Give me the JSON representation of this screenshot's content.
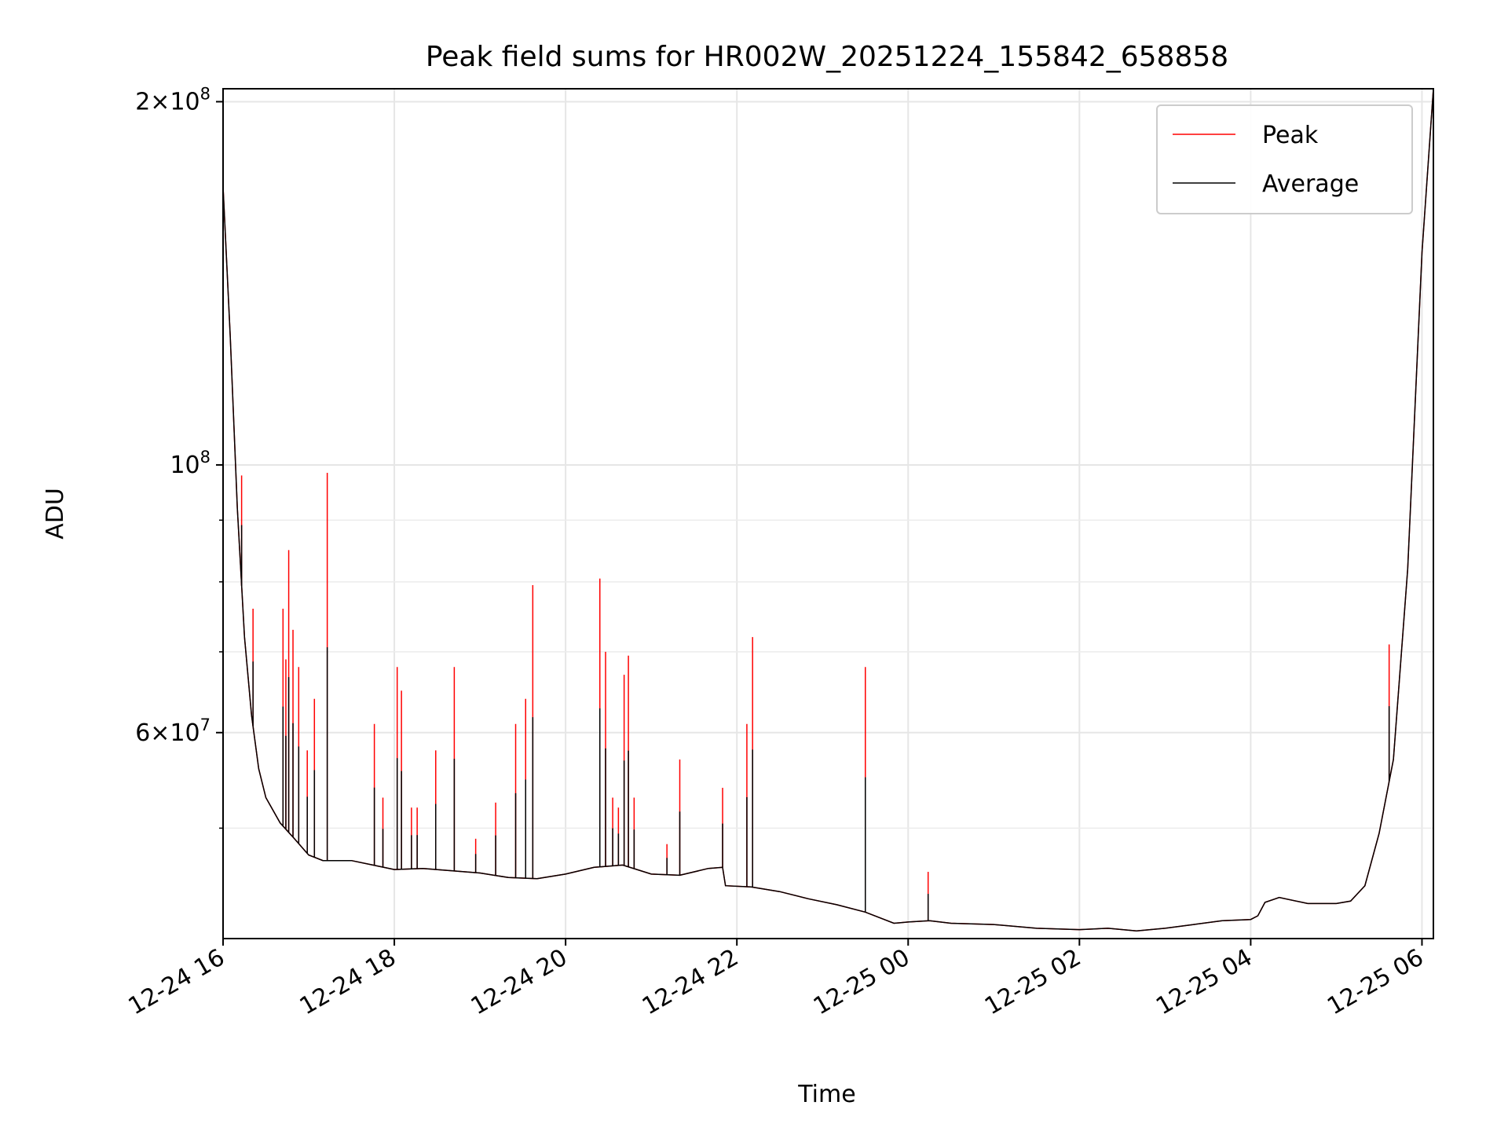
{
  "chart_data": {
    "type": "line",
    "title": "Peak field sums for HR002W_20251224_155842_658858",
    "xlabel": "Time",
    "ylabel": "ADU",
    "y_scale": "log",
    "xlim": [
      "2025-12-24T16:00",
      "2025-12-25T06:08"
    ],
    "ylim": [
      40500000,
      205000000
    ],
    "x_ticks": [
      {
        "t": "2025-12-24T16:00",
        "label": "12-24 16"
      },
      {
        "t": "2025-12-24T18:00",
        "label": "12-24 18"
      },
      {
        "t": "2025-12-24T20:00",
        "label": "12-24 20"
      },
      {
        "t": "2025-12-24T22:00",
        "label": "12-24 22"
      },
      {
        "t": "2025-12-25T00:00",
        "label": "12-25 00"
      },
      {
        "t": "2025-12-25T02:00",
        "label": "12-25 02"
      },
      {
        "t": "2025-12-25T04:00",
        "label": "12-25 04"
      },
      {
        "t": "2025-12-25T06:00",
        "label": "12-25 06"
      }
    ],
    "y_major_ticks": [
      {
        "value": 100000000,
        "base": "10",
        "exp": "8"
      },
      {
        "value": 200000000,
        "mant": "2",
        "base": "10",
        "exp": "8"
      },
      {
        "value": 60000000,
        "mant": "6",
        "base": "10",
        "exp": "7"
      }
    ],
    "y_minor_ticks": [
      50000000,
      70000000,
      80000000,
      90000000
    ],
    "grid": true,
    "legend": {
      "position": "top-right",
      "entries": [
        "Peak",
        "Average"
      ]
    },
    "series": [
      {
        "name": "Average",
        "color": "#000000",
        "points": [
          [
            "2025-12-24T16:00",
            170000000
          ],
          [
            "2025-12-24T16:05",
            128000000
          ],
          [
            "2025-12-24T16:10",
            92000000
          ],
          [
            "2025-12-24T16:15",
            72000000
          ],
          [
            "2025-12-24T16:20",
            62000000
          ],
          [
            "2025-12-24T16:25",
            56000000
          ],
          [
            "2025-12-24T16:30",
            53000000
          ],
          [
            "2025-12-24T16:40",
            50500000
          ],
          [
            "2025-12-24T16:50",
            49000000
          ],
          [
            "2025-12-24T17:00",
            47500000
          ],
          [
            "2025-12-24T17:10",
            47000000
          ],
          [
            "2025-12-24T17:30",
            47000000
          ],
          [
            "2025-12-24T17:45",
            46600000
          ],
          [
            "2025-12-24T18:00",
            46200000
          ],
          [
            "2025-12-24T18:20",
            46300000
          ],
          [
            "2025-12-24T18:40",
            46100000
          ],
          [
            "2025-12-24T19:00",
            45900000
          ],
          [
            "2025-12-24T19:20",
            45500000
          ],
          [
            "2025-12-24T19:40",
            45400000
          ],
          [
            "2025-12-24T20:00",
            45800000
          ],
          [
            "2025-12-24T20:20",
            46400000
          ],
          [
            "2025-12-24T20:40",
            46600000
          ],
          [
            "2025-12-24T21:00",
            45800000
          ],
          [
            "2025-12-24T21:20",
            45700000
          ],
          [
            "2025-12-24T21:40",
            46300000
          ],
          [
            "2025-12-24T21:50",
            46400000
          ],
          [
            "2025-12-24T21:52",
            44800000
          ],
          [
            "2025-12-24T22:10",
            44700000
          ],
          [
            "2025-12-24T22:30",
            44300000
          ],
          [
            "2025-12-24T22:50",
            43700000
          ],
          [
            "2025-12-24T23:10",
            43200000
          ],
          [
            "2025-12-24T23:30",
            42600000
          ],
          [
            "2025-12-24T23:50",
            41700000
          ],
          [
            "2025-12-25T00:00",
            41800000
          ],
          [
            "2025-12-25T00:15",
            41900000
          ],
          [
            "2025-12-25T00:30",
            41700000
          ],
          [
            "2025-12-25T01:00",
            41600000
          ],
          [
            "2025-12-25T01:30",
            41300000
          ],
          [
            "2025-12-25T02:00",
            41200000
          ],
          [
            "2025-12-25T02:20",
            41300000
          ],
          [
            "2025-12-25T02:40",
            41100000
          ],
          [
            "2025-12-25T03:00",
            41300000
          ],
          [
            "2025-12-25T03:20",
            41600000
          ],
          [
            "2025-12-25T03:40",
            41900000
          ],
          [
            "2025-12-25T04:00",
            42000000
          ],
          [
            "2025-12-25T04:05",
            42300000
          ],
          [
            "2025-12-25T04:10",
            43400000
          ],
          [
            "2025-12-25T04:20",
            43800000
          ],
          [
            "2025-12-25T04:40",
            43300000
          ],
          [
            "2025-12-25T05:00",
            43300000
          ],
          [
            "2025-12-25T05:10",
            43500000
          ],
          [
            "2025-12-25T05:20",
            44800000
          ],
          [
            "2025-12-25T05:30",
            49500000
          ],
          [
            "2025-12-25T05:40",
            57000000
          ],
          [
            "2025-12-25T05:50",
            82000000
          ],
          [
            "2025-12-25T06:00",
            150000000
          ],
          [
            "2025-12-25T06:08",
            205000000
          ]
        ]
      },
      {
        "name": "Peak",
        "color": "#ff0000",
        "baseline": "Average",
        "spikes": [
          [
            "2025-12-24T16:13",
            98000000
          ],
          [
            "2025-12-24T16:21",
            76000000
          ],
          [
            "2025-12-24T16:42",
            76000000
          ],
          [
            "2025-12-24T16:44",
            69000000
          ],
          [
            "2025-12-24T16:46",
            85000000
          ],
          [
            "2025-12-24T16:49",
            73000000
          ],
          [
            "2025-12-24T16:53",
            68000000
          ],
          [
            "2025-12-24T16:59",
            58000000
          ],
          [
            "2025-12-24T17:04",
            64000000
          ],
          [
            "2025-12-24T17:13",
            98500000
          ],
          [
            "2025-12-24T17:46",
            61000000
          ],
          [
            "2025-12-24T17:52",
            53000000
          ],
          [
            "2025-12-24T18:02",
            68000000
          ],
          [
            "2025-12-24T18:05",
            65000000
          ],
          [
            "2025-12-24T18:12",
            52000000
          ],
          [
            "2025-12-24T18:16",
            52000000
          ],
          [
            "2025-12-24T18:29",
            58000000
          ],
          [
            "2025-12-24T18:42",
            68000000
          ],
          [
            "2025-12-24T18:57",
            49000000
          ],
          [
            "2025-12-24T19:11",
            52500000
          ],
          [
            "2025-12-24T19:25",
            61000000
          ],
          [
            "2025-12-24T19:32",
            64000000
          ],
          [
            "2025-12-24T19:37",
            79500000
          ],
          [
            "2025-12-24T20:24",
            80500000
          ],
          [
            "2025-12-24T20:28",
            70000000
          ],
          [
            "2025-12-24T20:33",
            53000000
          ],
          [
            "2025-12-24T20:37",
            52000000
          ],
          [
            "2025-12-24T20:41",
            67000000
          ],
          [
            "2025-12-24T20:44",
            69500000
          ],
          [
            "2025-12-24T20:48",
            53000000
          ],
          [
            "2025-12-24T21:11",
            48500000
          ],
          [
            "2025-12-24T21:20",
            57000000
          ],
          [
            "2025-12-24T21:50",
            54000000
          ],
          [
            "2025-12-24T22:07",
            61000000
          ],
          [
            "2025-12-24T22:11",
            72000000
          ],
          [
            "2025-12-24T23:30",
            68000000
          ],
          [
            "2025-12-25T00:14",
            46000000
          ],
          [
            "2025-12-25T05:37",
            71000000
          ]
        ]
      }
    ]
  }
}
